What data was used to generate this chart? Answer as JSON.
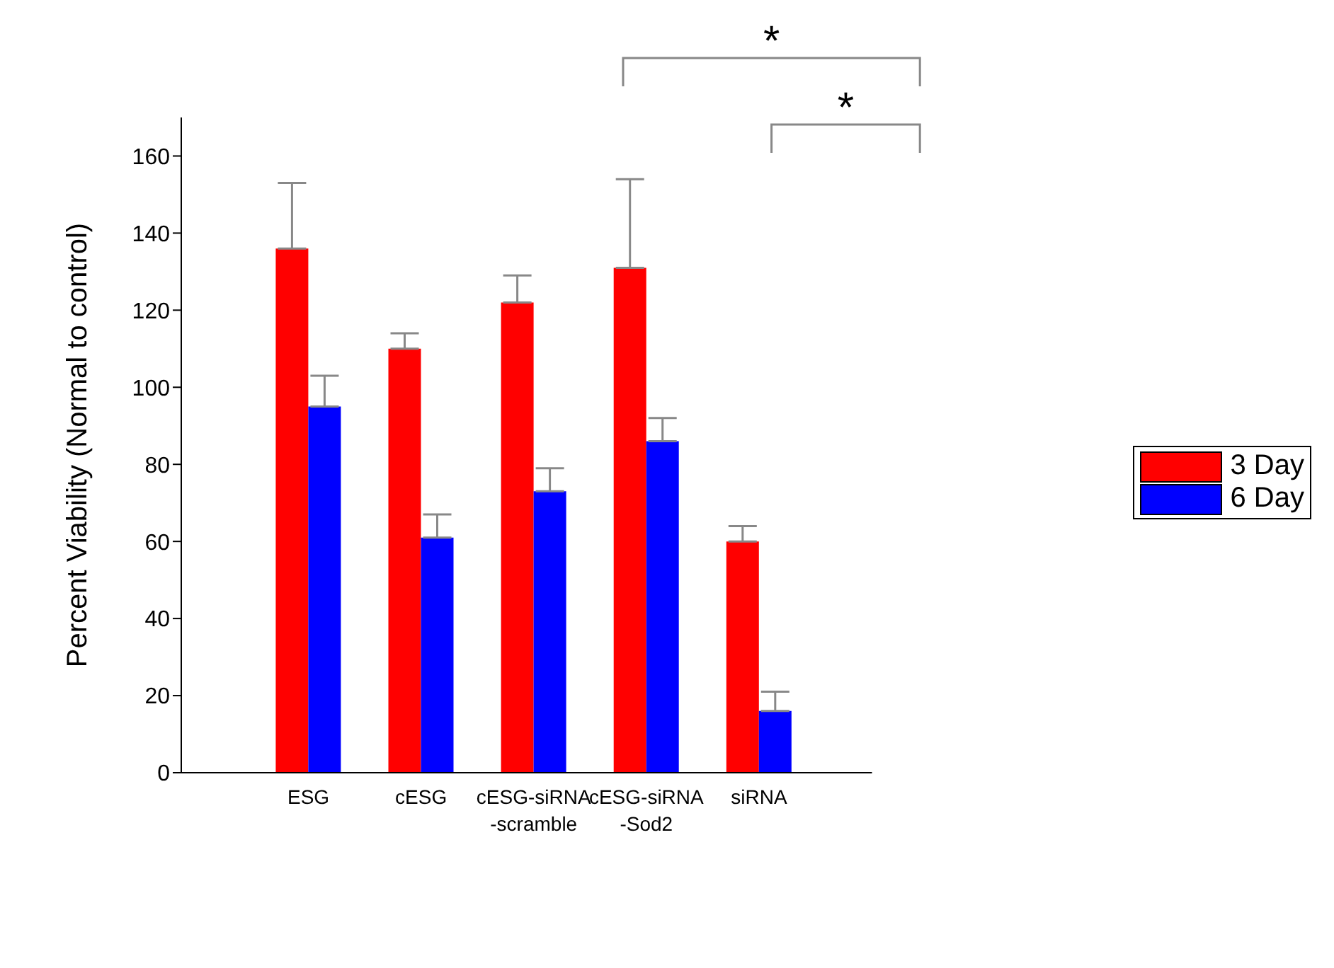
{
  "chart_data": {
    "type": "bar",
    "ylabel": "Percent Viability  (Normal to control)",
    "categories": [
      "ESG",
      "cESG",
      "cESG-siRNA\n-scramble",
      "cESG-siRNA\n-Sod2",
      "siRNA"
    ],
    "series": [
      {
        "name": "3 Day",
        "color": "#ff0000",
        "values": [
          136,
          110,
          122,
          131,
          60
        ],
        "errors": [
          [
            136,
            153
          ],
          [
            110,
            114
          ],
          [
            122,
            129
          ],
          [
            131,
            154
          ],
          [
            60,
            64
          ]
        ]
      },
      {
        "name": "6 Day",
        "color": "#0000ff",
        "values": [
          95,
          61,
          73,
          86,
          16
        ],
        "errors": [
          [
            95,
            103
          ],
          [
            61,
            67
          ],
          [
            73,
            79
          ],
          [
            86,
            92
          ],
          [
            16,
            21
          ]
        ]
      }
    ],
    "ylim": [
      0,
      170
    ],
    "yticks": [
      0,
      20,
      40,
      60,
      80,
      100,
      120,
      140,
      160
    ],
    "legend": "right",
    "annotations": [
      "*",
      "*"
    ]
  }
}
